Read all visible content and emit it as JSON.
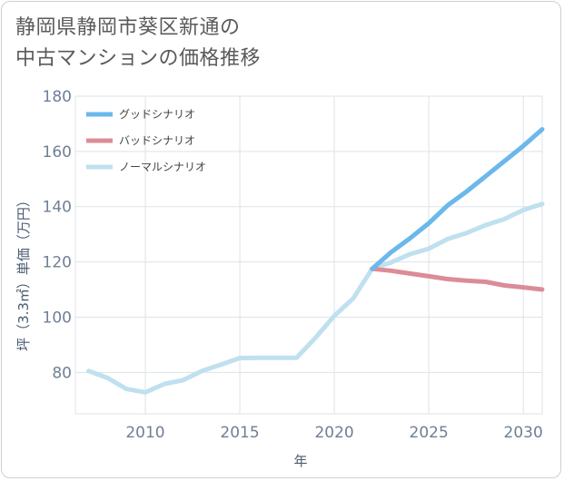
{
  "title_line1": "静岡県静岡市葵区新通の",
  "title_line2": "中古マンションの価格推移",
  "chart_data": {
    "type": "line",
    "xlabel": "年",
    "ylabel": "坪（3.3㎡）単価（万円）",
    "xlim": [
      2006.3,
      2031
    ],
    "ylim": [
      65,
      180
    ],
    "x_ticks": [
      2010,
      2015,
      2020,
      2025,
      2030
    ],
    "y_ticks": [
      80,
      100,
      120,
      140,
      160,
      180
    ],
    "grid": true,
    "legend_position": "top-left",
    "series": [
      {
        "name": "グッドシナリオ",
        "color": "#6ab8ec",
        "x": [
          2022,
          2023,
          2024,
          2025,
          2026,
          2027,
          2028,
          2029,
          2030,
          2031
        ],
        "y": [
          117.5,
          123.5,
          128.5,
          134,
          140.5,
          145.5,
          151,
          156.5,
          162,
          168
        ]
      },
      {
        "name": "バッドシナリオ",
        "color": "#dc8c96",
        "x": [
          2022,
          2023,
          2024,
          2025,
          2026,
          2027,
          2028,
          2029,
          2030,
          2031
        ],
        "y": [
          117.5,
          116.8,
          115.8,
          114.8,
          113.8,
          113.2,
          112.8,
          111.5,
          110.8,
          110
        ]
      },
      {
        "name": "ノーマルシナリオ",
        "color": "#bfe0ef",
        "x": [
          2007,
          2008,
          2009,
          2010,
          2011,
          2012,
          2013,
          2014,
          2015,
          2016,
          2017,
          2018,
          2019,
          2020,
          2021,
          2022,
          2023,
          2024,
          2025,
          2026,
          2027,
          2028,
          2029,
          2030,
          2031
        ],
        "y": [
          80.5,
          78,
          74,
          72.8,
          75.8,
          77.2,
          80.5,
          82.8,
          85.2,
          85.3,
          85.3,
          85.3,
          92.5,
          100.5,
          106.8,
          117.5,
          119.8,
          122.8,
          124.8,
          128.3,
          130.5,
          133.3,
          135.5,
          138.8,
          141
        ]
      }
    ]
  }
}
